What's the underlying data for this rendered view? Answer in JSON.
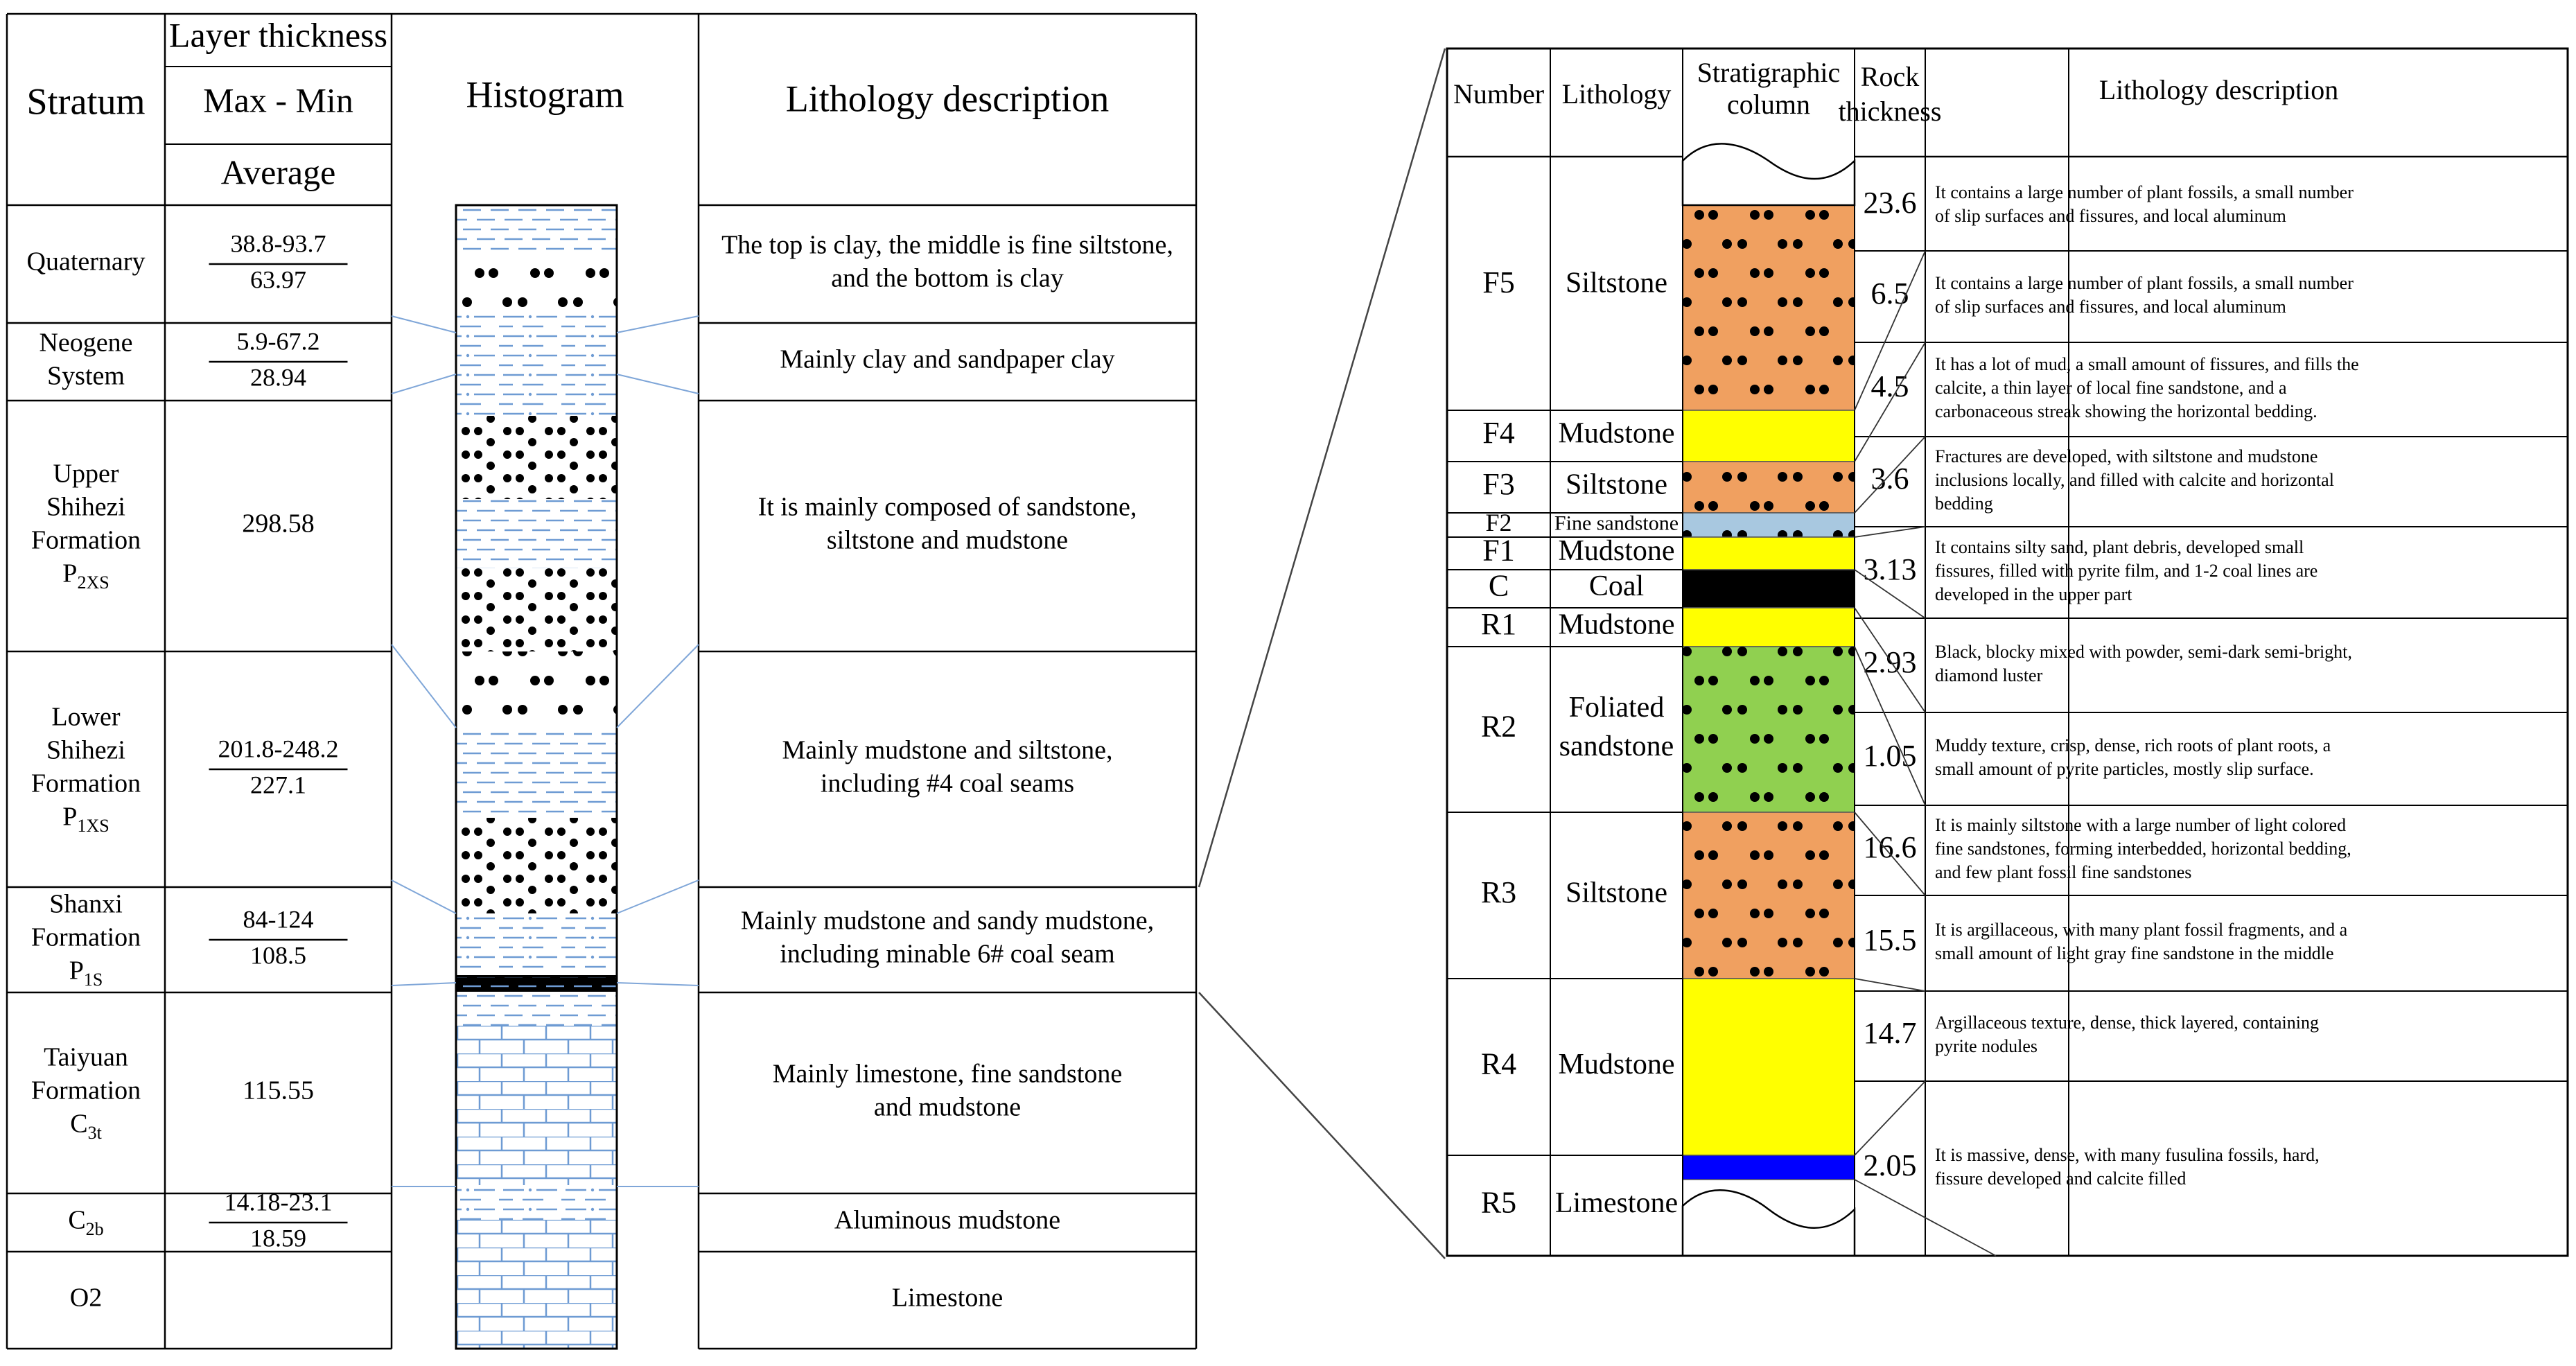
{
  "left_table": {
    "headers": {
      "stratum": "Stratum",
      "layer_thickness": "Layer thickness",
      "max_min": "Max - Min",
      "average": "Average",
      "histogram": "Histogram",
      "lithology": "Lithology description"
    },
    "rows": [
      {
        "stratum": [
          "Quaternary"
        ],
        "stratum_sub": "",
        "range": "38.8-93.7",
        "avg": "63.97",
        "desc": [
          "The top is clay, the middle is fine siltstone,",
          "and the bottom is clay"
        ]
      },
      {
        "stratum": [
          "Neogene",
          "System"
        ],
        "stratum_sub": "",
        "range": "5.9-67.2",
        "avg": "28.94",
        "desc": [
          "Mainly clay and sandpaper clay"
        ]
      },
      {
        "stratum": [
          "Upper",
          "Shihezi",
          "Formation",
          "P"
        ],
        "stratum_sub": "2XS",
        "range": "",
        "avg": "298.58",
        "desc": [
          "It is mainly composed of sandstone,",
          "siltstone and mudstone"
        ]
      },
      {
        "stratum": [
          "Lower",
          "Shihezi",
          "Formation",
          "P"
        ],
        "stratum_sub": "1XS",
        "range": "201.8-248.2",
        "avg": "227.1",
        "desc": [
          "Mainly mudstone and siltstone,",
          "including #4 coal seams"
        ]
      },
      {
        "stratum": [
          "Shanxi",
          "Formation",
          "P"
        ],
        "stratum_sub": "1S",
        "range": "84-124",
        "avg": "108.5",
        "desc": [
          "Mainly mudstone and sandy mudstone,",
          "including minable 6# coal seam"
        ]
      },
      {
        "stratum": [
          "Taiyuan",
          "Formation",
          "C"
        ],
        "stratum_sub": "3t",
        "range": "",
        "avg": "115.55",
        "desc": [
          "Mainly limestone, fine sandstone",
          "and mudstone"
        ]
      },
      {
        "stratum": [
          "C"
        ],
        "stratum_sub": "2b",
        "range": "14.18-23.1",
        "avg": "18.59",
        "desc": [
          "Aluminous mudstone"
        ]
      },
      {
        "stratum": [
          "O2"
        ],
        "stratum_sub": "",
        "range": "",
        "avg": "",
        "desc": [
          "Limestone"
        ]
      }
    ]
  },
  "right_table": {
    "headers": {
      "number": "Number",
      "lithology": "Lithology",
      "column": [
        "Stratigraphic",
        "column"
      ],
      "thickness": [
        "Rock",
        "thickness"
      ],
      "description": "Lithology description"
    },
    "layers": [
      {
        "number": "F5",
        "lithology": [
          "Siltstone"
        ],
        "pattern": "siltstone",
        "color": "#F0A060"
      },
      {
        "number": "F4",
        "lithology": [
          "Mudstone"
        ],
        "pattern": "mudstone",
        "color": "#FFFF00"
      },
      {
        "number": "F3",
        "lithology": [
          "Siltstone"
        ],
        "pattern": "siltstone",
        "color": "#F0A060"
      },
      {
        "number": "F2",
        "lithology": [
          "Fine sandstone"
        ],
        "pattern": "fine-sandstone",
        "color": "#A8C8E0"
      },
      {
        "number": "F1",
        "lithology": [
          "Mudstone"
        ],
        "pattern": "mudstone",
        "color": "#FFFF00"
      },
      {
        "number": "C",
        "lithology": [
          "Coal"
        ],
        "pattern": "coal",
        "color": "#000000"
      },
      {
        "number": "R1",
        "lithology": [
          "Mudstone"
        ],
        "pattern": "mudstone",
        "color": "#FFFF00"
      },
      {
        "number": "R2",
        "lithology": [
          "Foliated",
          "sandstone"
        ],
        "pattern": "sandstone",
        "color": "#90D050"
      },
      {
        "number": "R3",
        "lithology": [
          "Siltstone"
        ],
        "pattern": "siltstone",
        "color": "#F0A060"
      },
      {
        "number": "R4",
        "lithology": [
          "Mudstone"
        ],
        "pattern": "mudstone",
        "color": "#FFFF00"
      },
      {
        "number": "R5",
        "lithology": [
          "Limestone"
        ],
        "pattern": "limestone",
        "color": "#0000FF"
      }
    ],
    "descriptions": [
      {
        "thickness": "23.6",
        "lines": [
          "It contains a large number of plant fossils, a small number",
          "of slip surfaces and fissures, and local aluminum"
        ]
      },
      {
        "thickness": "6.5",
        "lines": [
          "It contains a large number of plant fossils, a small number",
          "of slip surfaces and fissures, and local aluminum"
        ]
      },
      {
        "thickness": "4.5",
        "lines": [
          "It has a lot of mud, a small amount of fissures, and fills the",
          "calcite, a thin layer of local fine sandstone, and a",
          "carbonaceous streak showing the horizontal bedding."
        ]
      },
      {
        "thickness": "3.6",
        "lines": [
          "Fractures are developed, with siltstone and mudstone",
          "inclusions locally, and filled with calcite and horizontal",
          "bedding"
        ]
      },
      {
        "thickness": "3.13",
        "lines": [
          "It contains silty sand, plant debris, developed small",
          "fissures, filled with pyrite film, and 1-2 coal lines are",
          "developed in the upper part"
        ]
      },
      {
        "thickness": "2.93",
        "lines": [
          "Black, blocky mixed with powder, semi-dark semi-bright,",
          "diamond luster"
        ]
      },
      {
        "thickness": "1.05",
        "lines": [
          "Muddy texture, crisp, dense, rich roots of plant roots, a",
          "small amount of pyrite particles, mostly slip surface."
        ]
      },
      {
        "thickness": "16.6",
        "lines": [
          "It is mainly siltstone with a large number of light colored",
          "fine sandstones, forming interbedded, horizontal bedding,",
          "and few plant fossil fine sandstones"
        ]
      },
      {
        "thickness": "15.5",
        "lines": [
          "It is argillaceous, with many plant fossil fragments, and a",
          "small amount of light gray fine sandstone in the middle"
        ]
      },
      {
        "thickness": "14.7",
        "lines": [
          "Argillaceous texture, dense, thick layered, containing",
          "pyrite nodules"
        ]
      },
      {
        "thickness": "2.05",
        "lines": [
          "It is massive, dense, with many fusulina fossils, hard,",
          "fissure developed and calcite filled"
        ]
      }
    ]
  },
  "colors": {
    "pattern_blue": "#6E9BD3",
    "connector": "#7FA6D8",
    "siltstone": "#F0A060",
    "mudstone": "#FFFF00",
    "fine_sandstone": "#A8C8E0",
    "sandstone": "#90D050",
    "coal": "#000000",
    "limestone": "#0000FF"
  }
}
